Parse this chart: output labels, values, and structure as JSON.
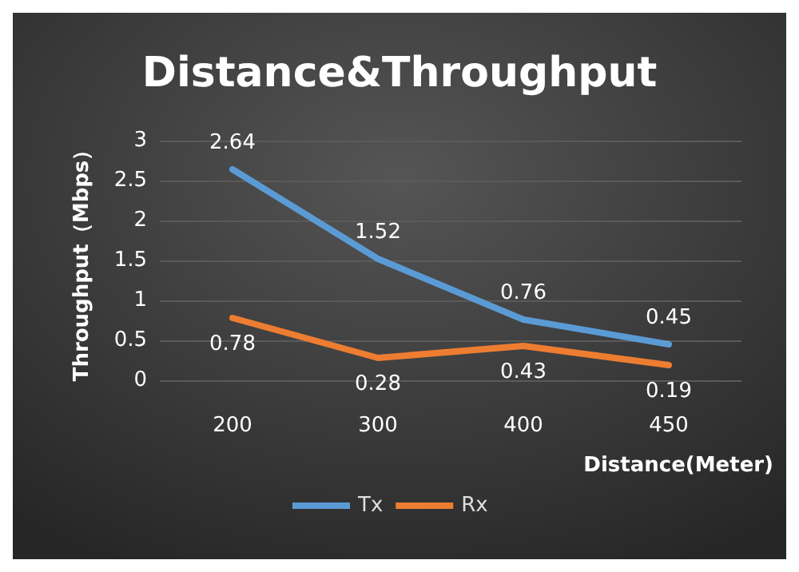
{
  "chart_data": {
    "type": "line",
    "title": "Distance&Throughput",
    "xlabel": "Distance(Meter)",
    "ylabel": "Throughput（Mbps）",
    "categories": [
      "200",
      "300",
      "400",
      "450"
    ],
    "series": [
      {
        "name": "Tx",
        "color": "#5b9bd5",
        "values": [
          2.64,
          1.52,
          0.76,
          0.45
        ]
      },
      {
        "name": "Rx",
        "color": "#ed7d31",
        "values": [
          0.78,
          0.28,
          0.43,
          0.19
        ]
      }
    ],
    "ylim": [
      0,
      3
    ],
    "yticks": [
      0,
      0.5,
      1,
      1.5,
      2,
      2.5,
      3
    ],
    "grid": "y",
    "legend": "bottom",
    "marker": "none",
    "line_style": "solid",
    "data_labels": true
  }
}
